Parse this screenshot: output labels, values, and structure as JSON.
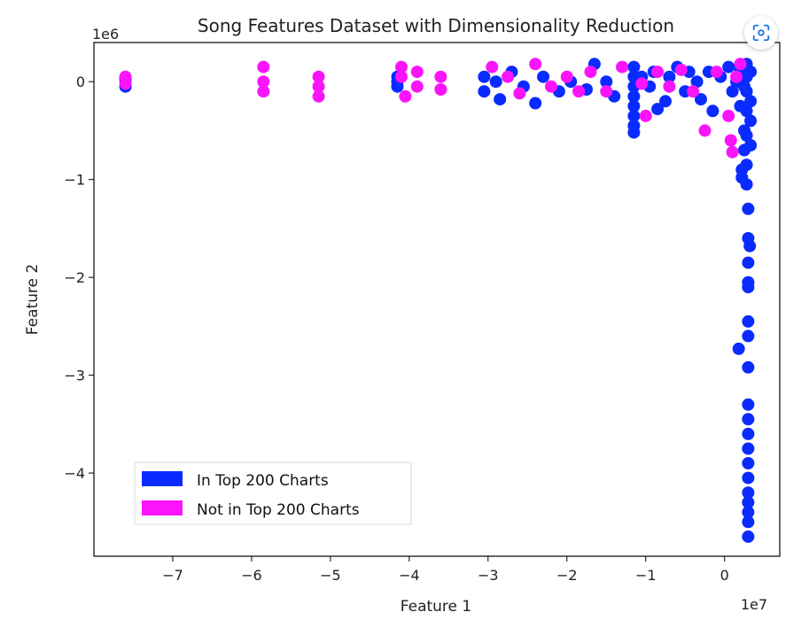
{
  "chart_data": {
    "type": "scatter",
    "title": "Song Features Dataset with Dimensionality Reduction",
    "xlabel": "Feature 1",
    "ylabel": "Feature 2",
    "x_offset_label": "1e7",
    "y_offset_label": "1e6",
    "xlim": [
      -8.0,
      0.7
    ],
    "ylim": [
      -4.85,
      0.4
    ],
    "x_ticks": [
      -7,
      -6,
      -5,
      -4,
      -3,
      -2,
      -1,
      0
    ],
    "x_tick_labels": [
      "−7",
      "−6",
      "−5",
      "−4",
      "−3",
      "−2",
      "−1",
      "0"
    ],
    "y_ticks": [
      0,
      -1,
      -2,
      -3,
      -4
    ],
    "y_tick_labels": [
      "0",
      "−1",
      "−2",
      "−3",
      "−4"
    ],
    "legend_position": "lower-left",
    "series": [
      {
        "name": "In Top 200 Charts",
        "color": "#0a2bff",
        "points": [
          [
            -7.6,
            -0.05
          ],
          [
            -7.6,
            0.02
          ],
          [
            -4.15,
            0.05
          ],
          [
            -4.15,
            -0.05
          ],
          [
            -4.15,
            0.0
          ],
          [
            -3.05,
            0.05
          ],
          [
            -3.05,
            -0.1
          ],
          [
            -2.9,
            0.0
          ],
          [
            -2.85,
            -0.18
          ],
          [
            -2.7,
            0.1
          ],
          [
            -2.55,
            -0.05
          ],
          [
            -2.4,
            -0.22
          ],
          [
            -2.3,
            0.05
          ],
          [
            -2.1,
            -0.1
          ],
          [
            -1.95,
            0.0
          ],
          [
            -1.75,
            -0.08
          ],
          [
            -1.65,
            0.18
          ],
          [
            -1.5,
            0.0
          ],
          [
            -1.4,
            -0.15
          ],
          [
            -1.15,
            0.15
          ],
          [
            -1.15,
            0.05
          ],
          [
            -1.15,
            -0.05
          ],
          [
            -1.15,
            -0.15
          ],
          [
            -1.15,
            -0.25
          ],
          [
            -1.15,
            -0.35
          ],
          [
            -1.15,
            -0.45
          ],
          [
            -1.15,
            -0.52
          ],
          [
            -1.05,
            0.05
          ],
          [
            -0.95,
            -0.05
          ],
          [
            -0.9,
            0.1
          ],
          [
            -0.85,
            -0.28
          ],
          [
            -0.75,
            -0.2
          ],
          [
            -0.7,
            0.05
          ],
          [
            -0.6,
            0.15
          ],
          [
            -0.5,
            -0.1
          ],
          [
            -0.45,
            0.1
          ],
          [
            -0.35,
            0.0
          ],
          [
            -0.3,
            -0.18
          ],
          [
            -0.2,
            0.1
          ],
          [
            -0.15,
            -0.3
          ],
          [
            -0.05,
            0.05
          ],
          [
            0.05,
            0.15
          ],
          [
            0.1,
            -0.1
          ],
          [
            0.15,
            0.0
          ],
          [
            0.2,
            0.12
          ],
          [
            0.25,
            -0.05
          ],
          [
            0.2,
            -0.25
          ],
          [
            0.25,
            -0.5
          ],
          [
            0.25,
            -0.7
          ],
          [
            0.22,
            -0.9
          ],
          [
            0.22,
            -0.98
          ],
          [
            0.28,
            0.18
          ],
          [
            0.28,
            0.05
          ],
          [
            0.28,
            -0.1
          ],
          [
            0.28,
            -0.3
          ],
          [
            0.28,
            -0.55
          ],
          [
            0.28,
            -0.85
          ],
          [
            0.28,
            -1.05
          ],
          [
            0.3,
            -1.3
          ],
          [
            0.3,
            -1.6
          ],
          [
            0.32,
            -1.68
          ],
          [
            0.3,
            -1.85
          ],
          [
            0.3,
            -2.05
          ],
          [
            0.3,
            -2.1
          ],
          [
            0.3,
            -2.45
          ],
          [
            0.3,
            -2.6
          ],
          [
            0.18,
            -2.73
          ],
          [
            0.3,
            -2.92
          ],
          [
            0.3,
            -3.3
          ],
          [
            0.3,
            -3.45
          ],
          [
            0.3,
            -3.6
          ],
          [
            0.3,
            -3.75
          ],
          [
            0.3,
            -3.9
          ],
          [
            0.3,
            -4.05
          ],
          [
            0.3,
            -4.2
          ],
          [
            0.3,
            -4.3
          ],
          [
            0.3,
            -4.4
          ],
          [
            0.3,
            -4.5
          ],
          [
            0.3,
            -4.65
          ],
          [
            0.33,
            0.1
          ],
          [
            0.33,
            -0.2
          ],
          [
            0.33,
            -0.4
          ],
          [
            0.33,
            -0.65
          ]
        ]
      },
      {
        "name": "Not in Top 200 Charts",
        "color": "#fa14fa",
        "points": [
          [
            -7.6,
            0.05
          ],
          [
            -7.6,
            -0.02
          ],
          [
            -5.85,
            0.15
          ],
          [
            -5.85,
            0.0
          ],
          [
            -5.85,
            -0.1
          ],
          [
            -5.15,
            0.05
          ],
          [
            -5.15,
            -0.05
          ],
          [
            -5.15,
            -0.15
          ],
          [
            -4.1,
            0.15
          ],
          [
            -4.1,
            0.05
          ],
          [
            -4.05,
            -0.15
          ],
          [
            -3.9,
            0.1
          ],
          [
            -3.9,
            -0.05
          ],
          [
            -3.6,
            0.05
          ],
          [
            -3.6,
            -0.08
          ],
          [
            -2.95,
            0.15
          ],
          [
            -2.75,
            0.05
          ],
          [
            -2.6,
            -0.12
          ],
          [
            -2.4,
            0.18
          ],
          [
            -2.2,
            -0.05
          ],
          [
            -2.0,
            0.05
          ],
          [
            -1.85,
            -0.1
          ],
          [
            -1.7,
            0.1
          ],
          [
            -1.5,
            -0.1
          ],
          [
            -1.3,
            0.15
          ],
          [
            -1.05,
            -0.02
          ],
          [
            -1.0,
            -0.35
          ],
          [
            -0.85,
            0.1
          ],
          [
            -0.7,
            -0.05
          ],
          [
            -0.55,
            0.12
          ],
          [
            -0.4,
            -0.1
          ],
          [
            -0.25,
            -0.5
          ],
          [
            -0.1,
            0.1
          ],
          [
            0.05,
            -0.35
          ],
          [
            0.08,
            -0.6
          ],
          [
            0.1,
            -0.72
          ],
          [
            0.15,
            0.05
          ],
          [
            0.2,
            0.18
          ]
        ]
      }
    ]
  }
}
